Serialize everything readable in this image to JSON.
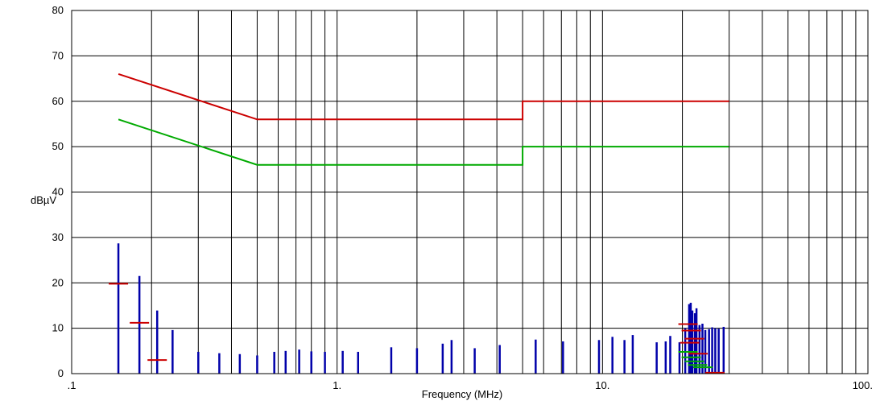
{
  "chart_data": {
    "type": "emc-spectrum",
    "ylabel": "dBµV",
    "xlabel": "Frequency (MHz)",
    "x_scale": "log",
    "xlim": [
      0.1,
      100
    ],
    "ylim": [
      0,
      80
    ],
    "grid": true,
    "yticks": [
      {
        "value": 0,
        "label": "0"
      },
      {
        "value": 10,
        "label": "10"
      },
      {
        "value": 20,
        "label": "20"
      },
      {
        "value": 30,
        "label": "30"
      },
      {
        "value": 40,
        "label": "40"
      },
      {
        "value": 50,
        "label": "50"
      },
      {
        "value": 60,
        "label": "60"
      },
      {
        "value": 70,
        "label": "70"
      },
      {
        "value": 80,
        "label": "80"
      }
    ],
    "xticks": [
      {
        "value": 0.1,
        "label": ".1"
      },
      {
        "value": 1,
        "label": "1."
      },
      {
        "value": 10,
        "label": "10."
      },
      {
        "value": 100,
        "label": "100."
      }
    ],
    "limit_lines": [
      {
        "color": "#cc0000",
        "points": [
          [
            0.15,
            66
          ],
          [
            0.5,
            56
          ],
          [
            5,
            56
          ],
          [
            5,
            60
          ],
          [
            30,
            60
          ]
        ]
      },
      {
        "color": "#00aa00",
        "points": [
          [
            0.15,
            56
          ],
          [
            0.5,
            46
          ],
          [
            5,
            46
          ],
          [
            5,
            50
          ],
          [
            30,
            50
          ]
        ]
      }
    ],
    "peaks": {
      "color": "#0000aa",
      "points": [
        [
          0.15,
          28.7
        ],
        [
          0.18,
          21.5
        ],
        [
          0.21,
          13.9
        ],
        [
          0.24,
          9.6
        ],
        [
          0.3,
          4.8
        ],
        [
          0.36,
          4.5
        ],
        [
          0.43,
          4.3
        ],
        [
          0.5,
          4.0
        ],
        [
          0.58,
          4.8
        ],
        [
          0.64,
          5.0
        ],
        [
          0.72,
          5.3
        ],
        [
          0.8,
          4.9
        ],
        [
          0.9,
          4.8
        ],
        [
          1.05,
          5.0
        ],
        [
          1.2,
          4.8
        ],
        [
          1.6,
          5.8
        ],
        [
          2.0,
          5.6
        ],
        [
          2.5,
          6.6
        ],
        [
          2.7,
          7.4
        ],
        [
          3.3,
          5.6
        ],
        [
          4.1,
          6.3
        ],
        [
          5.6,
          7.5
        ],
        [
          7.1,
          7.1
        ],
        [
          9.7,
          7.4
        ],
        [
          10.9,
          8.1
        ],
        [
          12.1,
          7.4
        ],
        [
          13.0,
          8.5
        ],
        [
          16.0,
          6.9
        ],
        [
          17.3,
          7.1
        ],
        [
          18.0,
          8.3
        ],
        [
          19.5,
          6.9
        ],
        [
          20.5,
          10.0
        ],
        [
          21.2,
          15.3
        ],
        [
          21.5,
          15.6
        ],
        [
          21.8,
          13.9
        ],
        [
          22.3,
          13.3
        ],
        [
          22.6,
          14.4
        ],
        [
          23.2,
          10.7
        ],
        [
          23.8,
          11.0
        ],
        [
          24.4,
          9.6
        ],
        [
          25.2,
          9.8
        ],
        [
          25.9,
          10.2
        ],
        [
          26.6,
          10.0
        ],
        [
          27.4,
          9.9
        ],
        [
          28.6,
          10.3
        ]
      ]
    },
    "quasi_peak_markers": {
      "color": "#cc0000",
      "points": [
        [
          0.15,
          19.8
        ],
        [
          0.18,
          11.2
        ],
        [
          0.21,
          3.0
        ],
        [
          21.0,
          10.9
        ],
        [
          21.6,
          9.5
        ],
        [
          22.2,
          7.7
        ],
        [
          21.3,
          6.8
        ],
        [
          22.9,
          4.4
        ],
        [
          26.5,
          0.2
        ]
      ]
    },
    "average_markers": {
      "color": "#00aa00",
      "points": [
        [
          21.0,
          4.8
        ],
        [
          21.6,
          3.6
        ],
        [
          22.2,
          2.7
        ],
        [
          22.8,
          1.9
        ],
        [
          23.9,
          1.4
        ]
      ]
    }
  }
}
